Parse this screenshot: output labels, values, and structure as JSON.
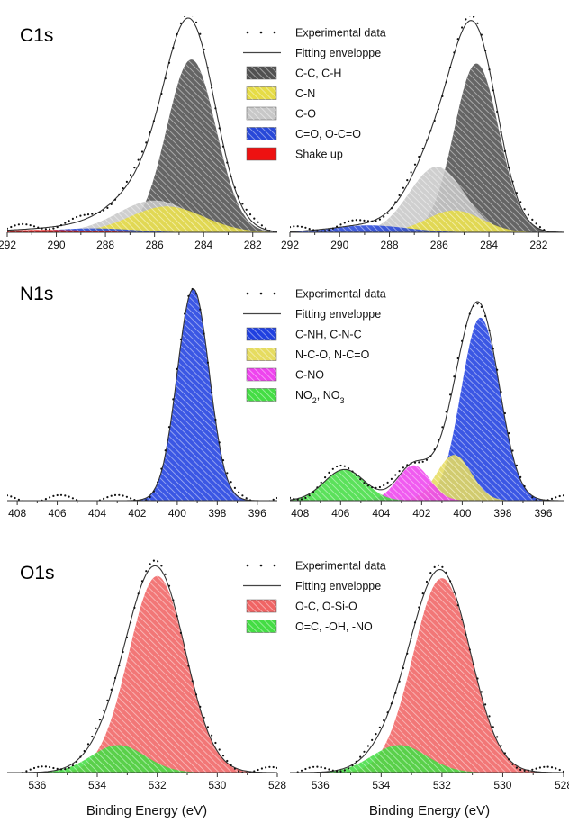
{
  "xlabel": "Binding Energy (eV)",
  "rows": [
    {
      "title": "C1s",
      "xlim": [
        292,
        281
      ],
      "xticks": [
        292,
        290,
        288,
        286,
        284,
        282
      ],
      "legend": [
        {
          "label": "Experimental data",
          "kind": "dots"
        },
        {
          "label": "Fitting enveloppe",
          "kind": "line"
        },
        {
          "label": "C-C, C-H",
          "kind": "patch",
          "color": "#505050"
        },
        {
          "label": "C-N",
          "kind": "patch",
          "color": "#e6dc46"
        },
        {
          "label": "C-O",
          "kind": "patch",
          "color": "#c8c8c8"
        },
        {
          "label": "C=O, O-C=O",
          "kind": "patch",
          "color": "#2848d8"
        },
        {
          "label": "Shake up",
          "kind": "solid",
          "color": "#ee1111"
        }
      ]
    },
    {
      "title": "N1s",
      "xlim": [
        408.5,
        395
      ],
      "xticks": [
        408,
        406,
        404,
        402,
        400,
        398,
        396
      ],
      "legend": [
        {
          "label": "Experimental data",
          "kind": "dots"
        },
        {
          "label": "Fitting enveloppe",
          "kind": "line"
        },
        {
          "label": "C-NH, C-N-C",
          "kind": "patch",
          "color": "#2040e0"
        },
        {
          "label": "N-C-O, N-C=O",
          "kind": "patch",
          "color": "#e6dc60"
        },
        {
          "label": "C-NO",
          "kind": "patch",
          "color": "#ee44ee"
        },
        {
          "label": "NO",
          "sub1": "2",
          "mid": ", NO",
          "sub2": "3",
          "kind": "patch",
          "color": "#44dd44"
        }
      ]
    },
    {
      "title": "O1s",
      "xlim": [
        537,
        528
      ],
      "xticks": [
        536,
        534,
        532,
        530,
        528
      ],
      "legend": [
        {
          "label": "Experimental data",
          "kind": "dots"
        },
        {
          "label": "Fitting enveloppe",
          "kind": "line"
        },
        {
          "label": "O-C, O-Si-O",
          "kind": "patch",
          "color": "#f06464"
        },
        {
          "label": "O=C, -OH, -NO",
          "kind": "patch",
          "color": "#44dd44"
        }
      ]
    }
  ],
  "chart_data": [
    {
      "type": "area",
      "title": "C1s",
      "xlabel": "",
      "xlim": [
        292,
        281
      ],
      "ylim": [
        0,
        1.07
      ],
      "series": [
        {
          "name": "C-C, C-H",
          "color": "#505050",
          "center": 284.5,
          "height": 0.87,
          "width": 1.0
        },
        {
          "name": "C-N",
          "color": "#e6dc46",
          "center": 285.5,
          "height": 0.13,
          "width": 1.5
        },
        {
          "name": "C-O",
          "color": "#c8c8c8",
          "center": 286.0,
          "height": 0.16,
          "width": 1.5
        },
        {
          "name": "C=O, O-C=O",
          "color": "#2848d8",
          "center": 288.5,
          "height": 0.02,
          "width": 1.6
        },
        {
          "name": "Shake up",
          "color": "#ee1111",
          "center": 290.5,
          "height": 0.012,
          "width": 2.0
        }
      ]
    },
    {
      "type": "area",
      "title": "",
      "xlabel": "",
      "xlim": [
        292,
        281
      ],
      "ylim": [
        0,
        1.07
      ],
      "series": [
        {
          "name": "C-C, C-H",
          "color": "#505050",
          "center": 284.5,
          "height": 0.85,
          "width": 0.9
        },
        {
          "name": "C-N",
          "color": "#e6dc46",
          "center": 285.4,
          "height": 0.11,
          "width": 1.1
        },
        {
          "name": "C-O",
          "color": "#c8c8c8",
          "center": 286.1,
          "height": 0.33,
          "width": 1.1
        },
        {
          "name": "C=O, O-C=O",
          "color": "#2848d8",
          "center": 288.8,
          "height": 0.035,
          "width": 1.5
        }
      ]
    },
    {
      "type": "area",
      "title": "N1s",
      "xlabel": "",
      "xlim": [
        408.5,
        395
      ],
      "ylim": [
        0,
        1.03
      ],
      "series": [
        {
          "name": "C-NH, C-N-C",
          "color": "#2040e0",
          "center": 399.2,
          "height": 0.98,
          "width": 0.8
        }
      ]
    },
    {
      "type": "area",
      "title": "",
      "xlabel": "",
      "xlim": [
        408.5,
        395
      ],
      "ylim": [
        0,
        1.07
      ],
      "series": [
        {
          "name": "C-NH, C-N-C",
          "color": "#2040e0",
          "center": 399.1,
          "height": 0.88,
          "width": 0.95
        },
        {
          "name": "N-C-O, N-C=O",
          "color": "#e6dc60",
          "center": 400.4,
          "height": 0.22,
          "width": 0.85
        },
        {
          "name": "C-NO",
          "color": "#ee44ee",
          "center": 402.4,
          "height": 0.17,
          "width": 0.8
        },
        {
          "name": "NO2, NO3",
          "color": "#44dd44",
          "center": 405.8,
          "height": 0.15,
          "width": 1.0
        }
      ]
    },
    {
      "type": "area",
      "title": "O1s",
      "xlabel": "Binding Energy (eV)",
      "xlim": [
        537,
        528
      ],
      "ylim": [
        0,
        1.04
      ],
      "series": [
        {
          "name": "O-C, O-Si-O",
          "color": "#f06464",
          "center": 532.0,
          "height": 0.93,
          "width": 0.95
        },
        {
          "name": "O=C, -OH, -NO",
          "color": "#44dd44",
          "center": 533.3,
          "height": 0.13,
          "width": 0.9
        }
      ]
    },
    {
      "type": "area",
      "title": "",
      "xlabel": "Binding Energy (eV)",
      "xlim": [
        537,
        528
      ],
      "ylim": [
        0,
        1.04
      ],
      "series": [
        {
          "name": "O-C, O-Si-O",
          "color": "#f06464",
          "center": 532.0,
          "height": 0.92,
          "width": 0.95
        },
        {
          "name": "O=C, -OH, -NO",
          "color": "#44dd44",
          "center": 533.4,
          "height": 0.13,
          "width": 0.9
        }
      ]
    }
  ]
}
